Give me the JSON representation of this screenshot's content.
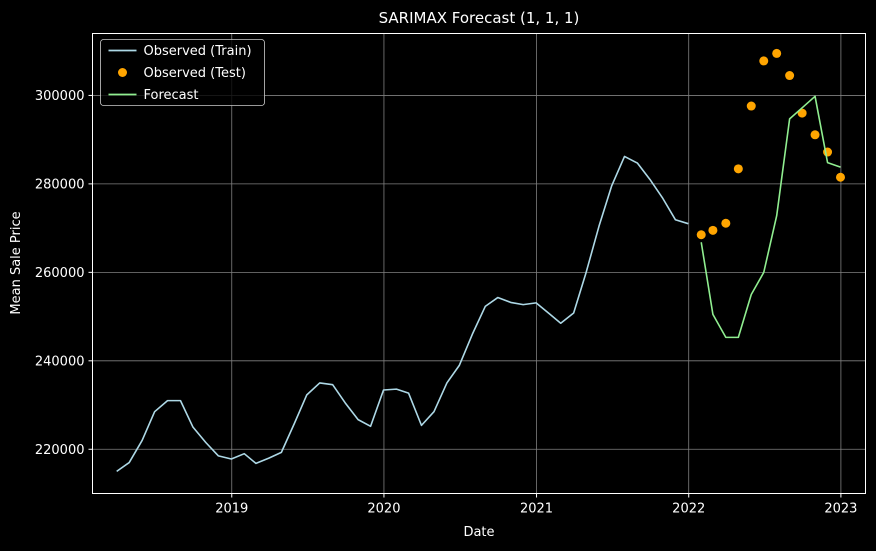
{
  "chart_data": {
    "type": "line",
    "title": "SARIMAX Forecast (1, 1, 1)",
    "xlabel": "Date",
    "ylabel": "Mean Sale Price",
    "xlim": [
      "2018-02-01",
      "2023-03-01"
    ],
    "ylim": [
      210000,
      314000
    ],
    "x_ticks": [
      "2019",
      "2020",
      "2021",
      "2022",
      "2023"
    ],
    "y_ticks": [
      220000,
      240000,
      260000,
      280000,
      300000
    ],
    "grid": true,
    "legend_position": "top-left",
    "series": [
      {
        "name": "Observed (Train)",
        "kind": "line",
        "color": "#add8e6",
        "x": [
          "2018-03-31",
          "2018-04-30",
          "2018-05-31",
          "2018-06-30",
          "2018-07-31",
          "2018-08-31",
          "2018-09-30",
          "2018-10-31",
          "2018-11-30",
          "2018-12-31",
          "2019-01-31",
          "2019-02-28",
          "2019-03-31",
          "2019-04-30",
          "2019-05-31",
          "2019-06-30",
          "2019-07-31",
          "2019-08-31",
          "2019-09-30",
          "2019-10-31",
          "2019-11-30",
          "2019-12-31",
          "2020-01-31",
          "2020-02-29",
          "2020-03-31",
          "2020-04-30",
          "2020-05-31",
          "2020-06-30",
          "2020-07-31",
          "2020-08-31",
          "2020-09-30",
          "2020-10-31",
          "2020-11-30",
          "2020-12-31",
          "2021-01-31",
          "2021-02-28",
          "2021-03-31",
          "2021-04-30",
          "2021-05-31",
          "2021-06-30",
          "2021-07-31",
          "2021-08-31",
          "2021-09-30",
          "2021-10-31",
          "2021-11-30",
          "2021-12-31"
        ],
        "values": [
          215000,
          217000,
          222000,
          228500,
          231000,
          231000,
          225000,
          221500,
          218500,
          217800,
          219000,
          216800,
          218000,
          219300,
          225800,
          232300,
          235000,
          234600,
          230500,
          226700,
          225200,
          233400,
          233600,
          232700,
          225400,
          228500,
          235000,
          239000,
          246000,
          252300,
          254300,
          253200,
          252700,
          253100,
          250700,
          248500,
          250800,
          260000,
          270500,
          279500,
          286200,
          284700,
          281000,
          276700,
          271900,
          271000
        ]
      },
      {
        "name": "Observed (Test)",
        "kind": "scatter",
        "color": "#ffa500",
        "x": [
          "2022-01-31",
          "2022-02-28",
          "2022-03-31",
          "2022-04-30",
          "2022-05-31",
          "2022-06-30",
          "2022-07-31",
          "2022-08-31",
          "2022-09-30",
          "2022-10-31",
          "2022-11-30",
          "2022-12-31"
        ],
        "values": [
          268500,
          269500,
          271100,
          283400,
          297600,
          307800,
          309500,
          304500,
          296000,
          291100,
          287200,
          281500
        ]
      },
      {
        "name": "Forecast",
        "kind": "line",
        "color": "#90ee90",
        "x": [
          "2022-01-31",
          "2022-02-28",
          "2022-03-31",
          "2022-04-30",
          "2022-05-31",
          "2022-06-30",
          "2022-07-31",
          "2022-08-31",
          "2022-09-30",
          "2022-10-31",
          "2022-11-30",
          "2022-12-31"
        ],
        "values": [
          266800,
          250500,
          245300,
          245300,
          255000,
          260000,
          272800,
          294700,
          297200,
          299800,
          284800,
          283800
        ]
      }
    ]
  }
}
